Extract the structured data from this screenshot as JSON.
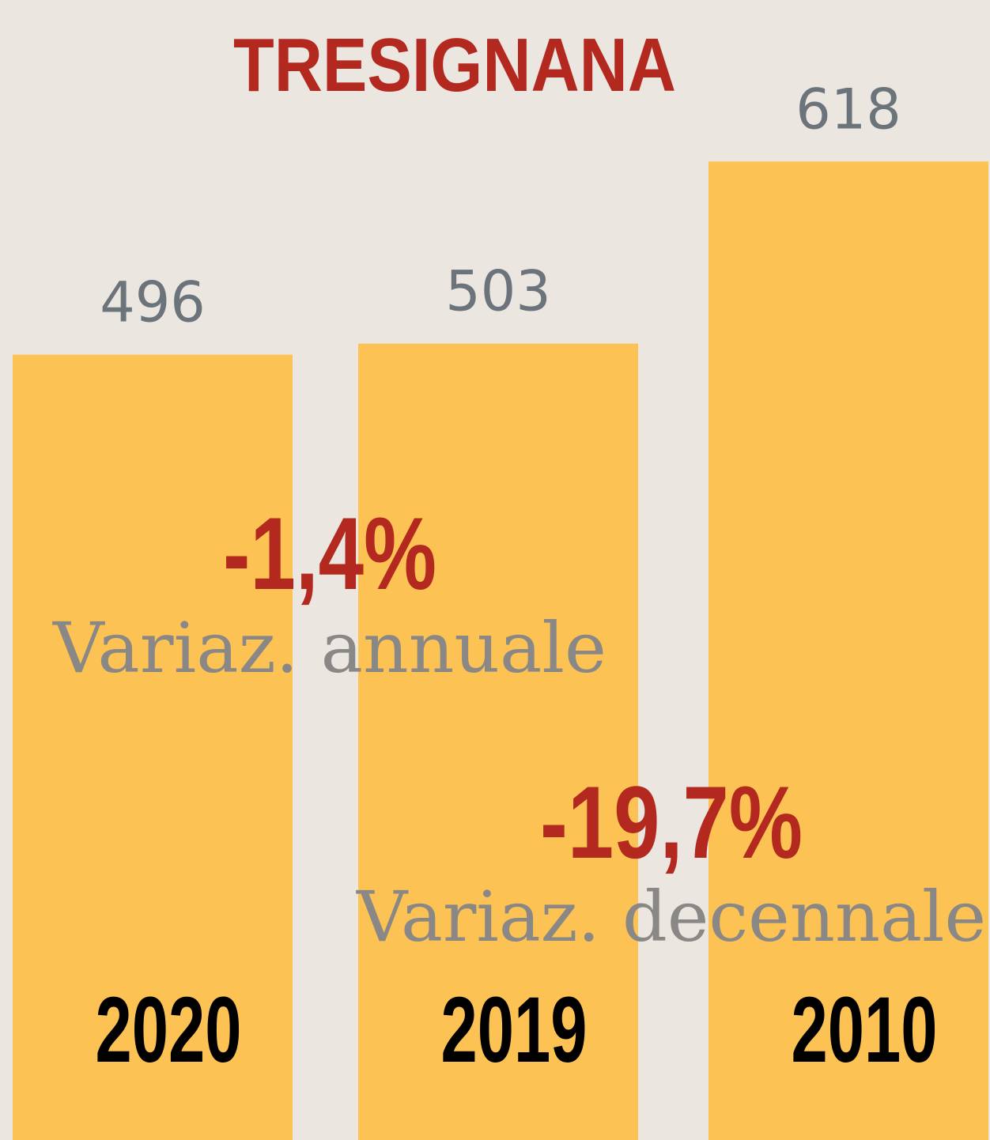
{
  "chart_data": {
    "type": "bar",
    "title": "TRESIGNANA",
    "categories": [
      "2020",
      "2019",
      "2010"
    ],
    "values": [
      496,
      503,
      618
    ],
    "color": "#fdc254",
    "ylim": [
      0,
      720
    ],
    "annotations": [
      {
        "text": "-1,4%",
        "label": "Variaz. annuale"
      },
      {
        "text": "-19,7%",
        "label": "Variaz. decennale"
      }
    ]
  }
}
